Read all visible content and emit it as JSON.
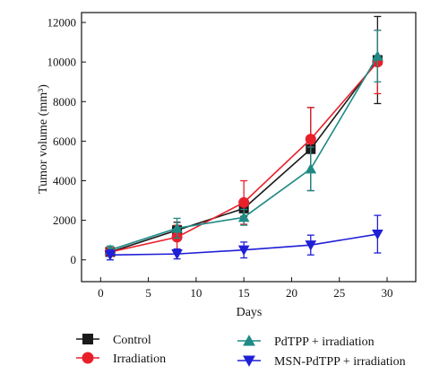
{
  "chart_data": {
    "type": "line",
    "xlabel": "Days",
    "ylabel": "Tumor volume (mm³)",
    "xlim": [
      -2,
      33
    ],
    "ylim": [
      -1100,
      12500
    ],
    "xticks": [
      0,
      5,
      10,
      15,
      20,
      25,
      30
    ],
    "yticks": [
      0,
      2000,
      4000,
      6000,
      8000,
      10000,
      12000
    ],
    "grid": false,
    "legend_position": "bottom",
    "series": [
      {
        "name": "Control",
        "color": "#1a1a1a",
        "marker": "square",
        "x": [
          1,
          8,
          15,
          22,
          29
        ],
        "y": [
          400,
          1500,
          2600,
          5600,
          10100
        ],
        "err": [
          150,
          400,
          400,
          2100,
          2200
        ]
      },
      {
        "name": "Irradiation",
        "color": "#e8202a",
        "marker": "circle",
        "x": [
          1,
          8,
          15,
          22,
          29
        ],
        "y": [
          400,
          1150,
          2900,
          6100,
          10000
        ],
        "err": [
          150,
          600,
          1100,
          1600,
          1600
        ]
      },
      {
        "name": "PdTPP + irradiation",
        "color": "#1f8a85",
        "marker": "triangle-up",
        "x": [
          1,
          8,
          15,
          22,
          29
        ],
        "y": [
          500,
          1600,
          2150,
          4600,
          10300
        ],
        "err": [
          200,
          500,
          400,
          1100,
          1300
        ]
      },
      {
        "name": "MSN-PdTPP + irradiation",
        "color": "#1f1fd6",
        "marker": "triangle-down",
        "x": [
          1,
          8,
          15,
          22,
          29
        ],
        "y": [
          250,
          300,
          500,
          750,
          1300
        ],
        "err": [
          250,
          250,
          400,
          500,
          950
        ]
      }
    ]
  }
}
